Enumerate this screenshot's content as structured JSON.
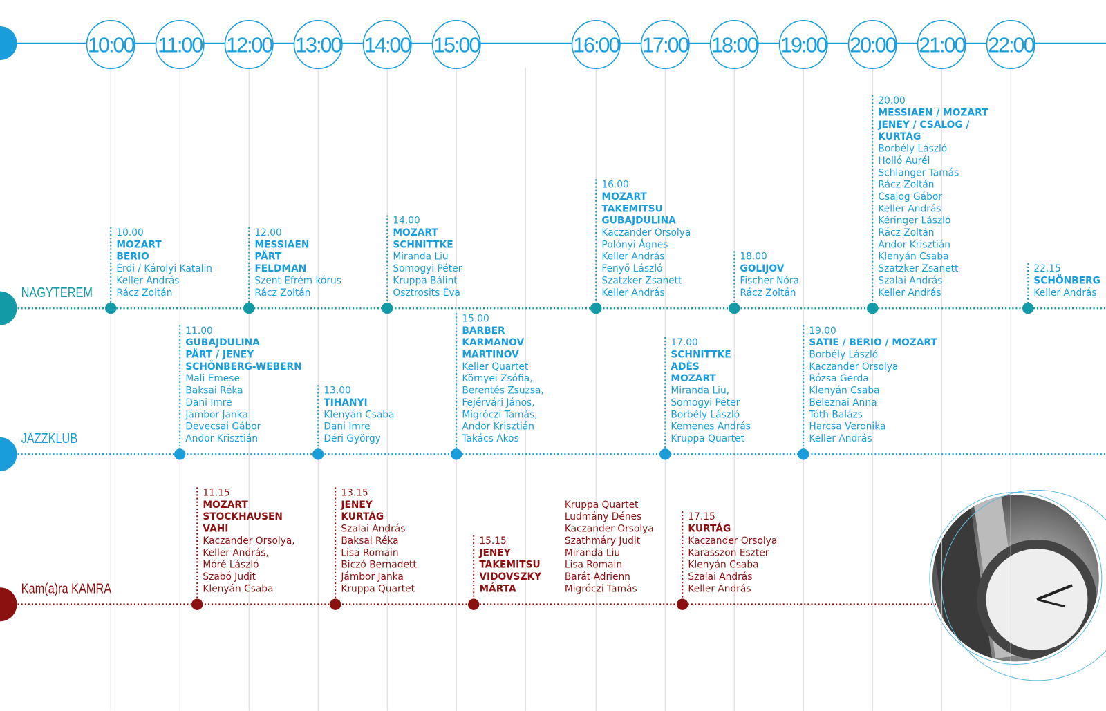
{
  "hours": [
    "10:00",
    "11:00",
    "12:00",
    "13:00",
    "14:00",
    "15:00",
    "16:00",
    "17:00",
    "18:00",
    "19:00",
    "20:00",
    "21:00",
    "22:00"
  ],
  "rooms": [
    {
      "name": "NAGYTEREM",
      "events": [
        {
          "time": "10.00",
          "titles": [
            "MOZART",
            "BERIO"
          ],
          "performers": [
            "Érdi / Károlyi Katalin",
            "Keller András",
            "Rácz Zoltán"
          ]
        },
        {
          "time": "12.00",
          "titles": [
            "MESSIAEN",
            "PÄRT",
            "FELDMAN"
          ],
          "performers": [
            "Szent Efrém kórus",
            "Rácz Zoltán"
          ]
        },
        {
          "time": "14.00",
          "titles": [
            "MOZART",
            "SCHNITTKE"
          ],
          "performers": [
            "Miranda Liu",
            "Somogyi Péter",
            "Kruppa Bálint",
            "Osztrosits Éva"
          ]
        },
        {
          "time": "16.00",
          "titles": [
            "MOZART",
            "TAKEMITSU",
            "GUBAJDULINA"
          ],
          "performers": [
            "Kaczander Orsolya",
            "Polónyi Ágnes",
            "Keller András",
            "Fenyő László",
            "Szatzker Zsanett",
            "Keller András"
          ]
        },
        {
          "time": "18.00",
          "titles": [
            "GOLIJOV"
          ],
          "performers": [
            "Fischer Nóra",
            "Rácz Zoltán"
          ]
        },
        {
          "time": "20.00",
          "titles": [
            "MESSIAEN / MOZART",
            "JENEY / CSALOG /",
            "KURTÁG"
          ],
          "performers": [
            "Borbély László",
            "Holló Aurél",
            "Schlanger Tamás",
            "Rácz Zoltán",
            "Csalog Gábor",
            "Keller András",
            "Kéringer László",
            "Rácz Zoltán",
            "Andor Krisztián",
            "Klenyán Csaba",
            "Szatzker Zsanett",
            "Szalai András",
            "Keller András"
          ]
        },
        {
          "time": "22.15",
          "titles": [
            "SCHÖNBERG"
          ],
          "performers": [
            "Keller András"
          ]
        }
      ]
    },
    {
      "name": "JAZZKLUB",
      "events": [
        {
          "time": "11.00",
          "titles": [
            "GUBAJDULINA",
            "PÄRT / JENEY",
            "SCHÖNBERG-WEBERN"
          ],
          "performers": [
            "Mali Emese",
            "Baksai Réka",
            "Dani Imre",
            "Jámbor Janka",
            "Devecsai Gábor",
            "Andor Krisztián"
          ]
        },
        {
          "time": "13.00",
          "titles": [
            "TIHANYI"
          ],
          "performers": [
            "Klenyán Csaba",
            "Dani Imre",
            "Déri György"
          ]
        },
        {
          "time": "15.00",
          "titles": [
            "BARBER",
            "KARMANOV",
            "MARTINOV"
          ],
          "performers": [
            "Keller Quartet",
            "Környei Zsófia,",
            "Berentés Zsuzsa,",
            "Fejérvári János,",
            "Migróczi Tamás,",
            "Andor Krisztián",
            "Takács Ákos"
          ]
        },
        {
          "time": "17.00",
          "titles": [
            "SCHNITTKE",
            "ADÈS",
            "MOZART"
          ],
          "performers": [
            "Miranda Liu,",
            "Somogyi Péter",
            "Borbély László",
            "Kemenes András",
            "Kruppa Quartet"
          ]
        },
        {
          "time": "19.00",
          "titles": [
            "SATIE / BERIO / MOZART"
          ],
          "performers": [
            "Borbély László",
            "Kaczander Orsolya",
            "Rózsa Gerda",
            "Klenyán Csaba",
            "Beleznai Anna",
            "Tóth Balázs",
            "Harcsa Veronika",
            "Keller András"
          ]
        }
      ]
    },
    {
      "name": "Kam(a)ra KAMRA",
      "events": [
        {
          "time": "11.15",
          "titles": [
            "MOZART",
            "STOCKHAUSEN",
            "VAHI"
          ],
          "performers": [
            "Kaczander Orsolya,",
            "Keller András,",
            "Móré László",
            "Szabó Judit",
            "Klenyán Csaba"
          ]
        },
        {
          "time": "13.15",
          "titles": [
            "JENEY",
            "KURTÁG"
          ],
          "performers": [
            "Szalai András",
            "Baksai Réka",
            "Lisa Romain",
            "Biczó Bernadett",
            "Jámbor Janka",
            "Kruppa Quartet"
          ]
        },
        {
          "time": "15.15",
          "titles": [
            "JENEY",
            "TAKEMITSU",
            "VIDOVSZKY",
            "MÁRTA"
          ],
          "performers": [
            "Kruppa Quartet",
            "Ludmány Dénes",
            "Kaczander Orsolya",
            "Szathmáry Judit",
            "Miranda Liu",
            "Lisa Romain",
            "Barát Adrienn",
            "Migróczi Tamás"
          ]
        },
        {
          "time": "17.15",
          "titles": [
            "KURTÁG"
          ],
          "performers": [
            "Kaczander Orsolya",
            "Karasszon Eszter",
            "Klenyán Csaba",
            "Szalai András",
            "Keller András"
          ]
        }
      ]
    }
  ]
}
